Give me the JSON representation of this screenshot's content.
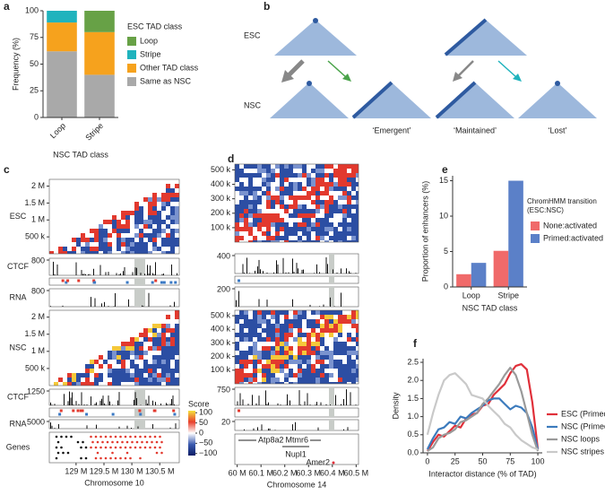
{
  "chart_data": [
    {
      "type": "bar",
      "panel": "a",
      "stacked": true,
      "categories": [
        "Loop",
        "Stripe"
      ],
      "xlabel": "NSC TAD class",
      "ylabel": "Frequency (%)",
      "legend_title": "ESC TAD class",
      "ylim": [
        0,
        100
      ],
      "yticks": [
        0,
        25,
        50,
        75,
        100
      ],
      "series": [
        {
          "name": "Loop",
          "color": "#67a146",
          "values": [
            0,
            20
          ]
        },
        {
          "name": "Stripe",
          "color": "#1fb3bd",
          "values": [
            11,
            0
          ]
        },
        {
          "name": "Other TAD class",
          "color": "#f6a21d",
          "values": [
            27,
            40
          ]
        },
        {
          "name": "Same as NSC",
          "color": "#a9a9a9",
          "values": [
            62,
            40
          ]
        }
      ]
    },
    {
      "type": "bar",
      "panel": "e",
      "stacked": false,
      "categories": [
        "Loop",
        "Stripe"
      ],
      "xlabel": "NSC TAD class",
      "ylabel": "Proportion of enhancers (%)",
      "legend_title": "ChromHMM transition (ESC:NSC)",
      "ylim": [
        0,
        15.7
      ],
      "yticks": [
        0,
        5,
        10,
        15
      ],
      "series": [
        {
          "name": "None:activated",
          "color": "#f06a6a",
          "values": [
            1.8,
            5.1
          ]
        },
        {
          "name": "Primed:activated",
          "color": "#5b80c8",
          "values": [
            3.4,
            15
          ]
        }
      ]
    },
    {
      "type": "line",
      "panel": "f",
      "xlabel": "Interactor distance (% of TAD)",
      "ylabel": "Density",
      "xlim": [
        -4,
        104
      ],
      "xticks": [
        0,
        25,
        50,
        75,
        100
      ],
      "ylim": [
        0,
        2.6
      ],
      "yticks": [
        {
          "value": 0,
          "label": "0.0"
        },
        {
          "value": 0.5,
          "label": "0.5"
        },
        {
          "value": 1,
          "label": "1.0"
        },
        {
          "value": 1.5,
          "label": "1.5"
        },
        {
          "value": 2,
          "label": "2.0"
        },
        {
          "value": 2.5,
          "label": "2.5"
        }
      ],
      "x": [
        0,
        5,
        10,
        15,
        20,
        25,
        30,
        35,
        40,
        45,
        50,
        55,
        60,
        65,
        70,
        75,
        80,
        85,
        90,
        95,
        100
      ],
      "series": [
        {
          "name": "ESC (Primed:active)",
          "color": "#e0303a",
          "values": [
            0.05,
            0.3,
            0.5,
            0.45,
            0.6,
            0.75,
            0.7,
            0.95,
            1.05,
            1.1,
            1.3,
            1.35,
            1.6,
            1.75,
            1.9,
            2.2,
            2.4,
            2.45,
            2.3,
            1.4,
            0.1
          ]
        },
        {
          "name": "NSC (Primed:active)",
          "color": "#3c7bbd",
          "values": [
            0.1,
            0.4,
            0.65,
            0.7,
            0.85,
            0.8,
            1.0,
            0.95,
            1.1,
            1.2,
            1.3,
            1.45,
            1.5,
            1.5,
            1.35,
            1.2,
            1.3,
            1.25,
            1.1,
            0.7,
            0.1
          ]
        },
        {
          "name": "NSC loops",
          "color": "#9a9a9a",
          "values": [
            0.05,
            0.15,
            0.4,
            0.5,
            0.55,
            0.65,
            0.85,
            0.9,
            1.0,
            1.1,
            1.35,
            1.5,
            1.7,
            1.9,
            2.15,
            2.35,
            2.15,
            1.7,
            1.1,
            0.5,
            0.05
          ]
        },
        {
          "name": "NSC stripes",
          "color": "#c9c9c9",
          "values": [
            0.5,
            1.1,
            1.6,
            2.0,
            2.15,
            2.2,
            2.05,
            1.9,
            1.6,
            1.55,
            1.5,
            1.3,
            1.15,
            1.0,
            0.8,
            0.7,
            0.5,
            0.35,
            0.25,
            0.15,
            0.1
          ]
        }
      ]
    },
    {
      "type": "genome",
      "panel": "c",
      "xlabel": "Chromosome 10",
      "xlim": [
        128.52,
        130.85
      ],
      "xticks": [
        {
          "value": 129,
          "label": "129 M"
        },
        {
          "value": 129.5,
          "label": "129.5 M"
        },
        {
          "value": 130,
          "label": "130 M"
        },
        {
          "value": 130.5,
          "label": "130.5 M"
        }
      ],
      "heatmaps": [
        {
          "label": "ESC",
          "ylim": [
            0,
            2200
          ],
          "yticks": [
            {
              "value": 2000,
              "label": "2 M"
            },
            {
              "value": 1500,
              "label": "1.5 M"
            },
            {
              "value": 1000,
              "label": "1 M"
            },
            {
              "value": 500,
              "label": "500 k"
            }
          ]
        },
        {
          "label": "NSC",
          "ylim": [
            0,
            2200
          ],
          "yticks": [
            {
              "value": 2000,
              "label": "2 M"
            },
            {
              "value": 1500,
              "label": "1.5 M"
            },
            {
              "value": 1000,
              "label": "1 M"
            },
            {
              "value": 500,
              "label": "500 k"
            }
          ]
        }
      ],
      "tracks": [
        {
          "label": "CTCF",
          "max": 800
        },
        {
          "label": "RNA",
          "max": 800
        },
        {
          "label": "CTCF",
          "max": 1250
        },
        {
          "label": "RNA",
          "max": 5000
        }
      ],
      "genes_label": "Genes",
      "colorbar": {
        "title": "Score",
        "lim": [
          -110,
          110
        ],
        "ticks": [
          100,
          50,
          0,
          {
            "value": -50,
            "label": "−50"
          },
          {
            "value": -100,
            "label": "−100"
          }
        ]
      }
    },
    {
      "type": "genome",
      "panel": "d",
      "xlabel": "Chromosome 14",
      "xlim": [
        59.99,
        60.51
      ],
      "xticks": [
        {
          "value": 60,
          "label": "60 M"
        },
        {
          "value": 60.1,
          "label": "60.1 M"
        },
        {
          "value": 60.2,
          "label": "60.2 M"
        },
        {
          "value": 60.3,
          "label": "60.3 M"
        },
        {
          "value": 60.4,
          "label": "60.4 M"
        },
        {
          "value": 60.5,
          "label": "60.5 M"
        }
      ],
      "heatmaps": [
        {
          "ylim": [
            0,
            540
          ],
          "yticks": [
            {
              "value": 500,
              "label": "500 k"
            },
            {
              "value": 400,
              "label": "400 k"
            },
            {
              "value": 300,
              "label": "300 k"
            },
            {
              "value": 200,
              "label": "200 k"
            },
            {
              "value": 100,
              "label": "100 k"
            }
          ]
        },
        {
          "ylim": [
            0,
            540
          ],
          "yticks": [
            {
              "value": 500,
              "label": "500 k"
            },
            {
              "value": 400,
              "label": "400 k"
            },
            {
              "value": 300,
              "label": "300 k"
            },
            {
              "value": 200,
              "label": "200 k"
            },
            {
              "value": 100,
              "label": "100 k"
            }
          ]
        }
      ],
      "tracks": [
        {
          "max": 400
        },
        {
          "max": 200
        },
        {
          "max": 750
        },
        {
          "max": 20
        }
      ],
      "genes": [
        {
          "name": "Atp8a2",
          "color": "#222222"
        },
        {
          "name": "Mtmr6",
          "color": "#222222"
        },
        {
          "name": "Nupl1",
          "color": "#222222"
        },
        {
          "name": "Amer2",
          "color": "#e0303a"
        }
      ]
    }
  ],
  "diagram": {
    "panel": "b",
    "rows": [
      "ESC",
      "NSC"
    ],
    "outcomes": [
      "‘Emergent’",
      "‘Maintained’",
      "‘Lost’"
    ]
  }
}
